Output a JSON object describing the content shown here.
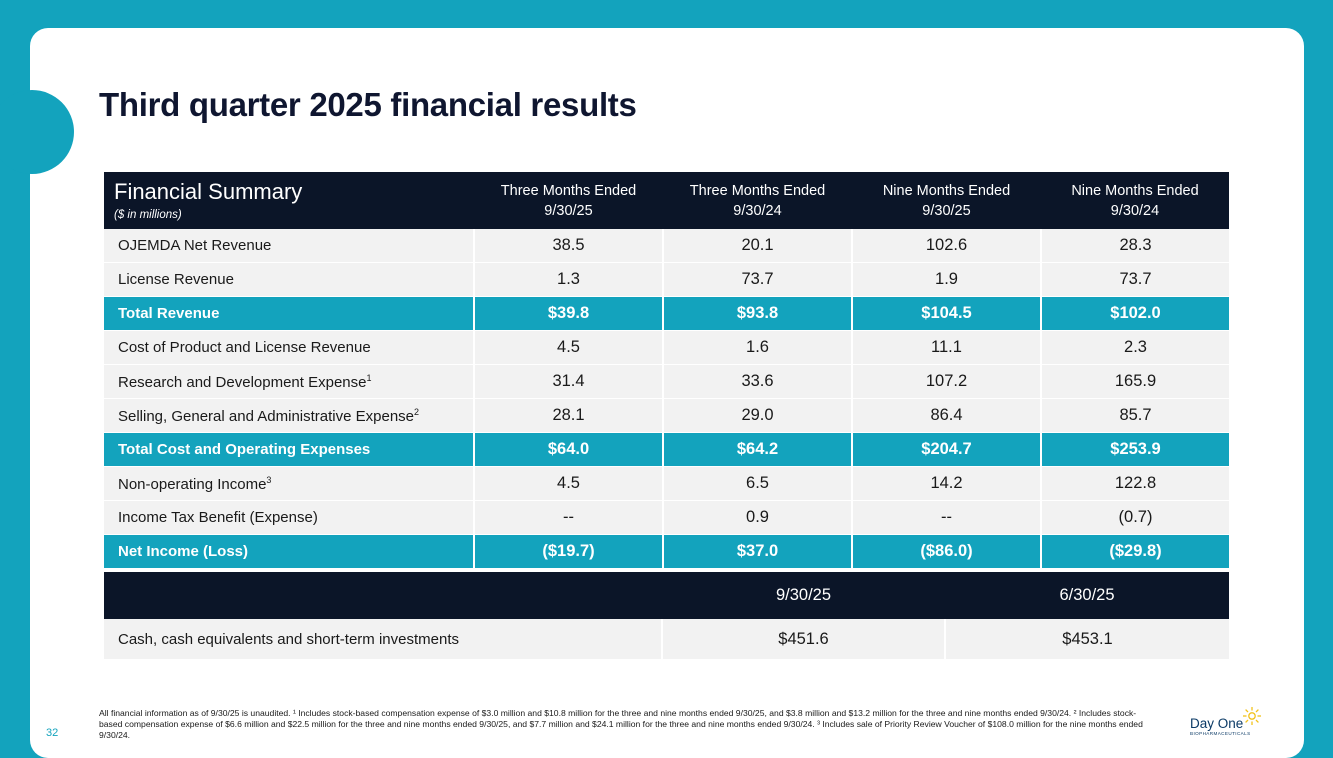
{
  "page": {
    "title": "Third quarter 2025 financial results",
    "page_number": "32"
  },
  "summary": {
    "heading": "Financial Summary",
    "subheading": "($ in millions)",
    "columns": [
      "Three Months Ended\n9/30/25",
      "Three Months Ended\n9/30/24",
      "Nine Months Ended\n9/30/25",
      "Nine Months Ended\n9/30/24"
    ],
    "rows": [
      {
        "label": "OJEMDA Net Revenue",
        "sup": "",
        "values": [
          "38.5",
          "20.1",
          "102.6",
          "28.3"
        ],
        "total": false
      },
      {
        "label": "License Revenue",
        "sup": "",
        "values": [
          "1.3",
          "73.7",
          "1.9",
          "73.7"
        ],
        "total": false
      },
      {
        "label": "Total Revenue",
        "sup": "",
        "values": [
          "$39.8",
          "$93.8",
          "$104.5",
          "$102.0"
        ],
        "total": true
      },
      {
        "label": "Cost of Product and License Revenue",
        "sup": "",
        "values": [
          "4.5",
          "1.6",
          "11.1",
          "2.3"
        ],
        "total": false
      },
      {
        "label": "Research and Development Expense",
        "sup": "1",
        "values": [
          "31.4",
          "33.6",
          "107.2",
          "165.9"
        ],
        "total": false
      },
      {
        "label": "Selling, General and Administrative Expense",
        "sup": "2",
        "values": [
          "28.1",
          "29.0",
          "86.4",
          "85.7"
        ],
        "total": false
      },
      {
        "label": "Total Cost and Operating Expenses",
        "sup": "",
        "values": [
          "$64.0",
          "$64.2",
          "$204.7",
          "$253.9"
        ],
        "total": true
      },
      {
        "label": "Non-operating Income",
        "sup": "3",
        "values": [
          "4.5",
          "6.5",
          "14.2",
          "122.8"
        ],
        "total": false
      },
      {
        "label": "Income Tax Benefit (Expense)",
        "sup": "",
        "values": [
          "--",
          "0.9",
          "--",
          "(0.7)"
        ],
        "total": false
      },
      {
        "label": "Net Income (Loss)",
        "sup": "",
        "values": [
          "($19.7)",
          "$37.0",
          "($86.0)",
          "($29.8)"
        ],
        "total": true
      }
    ]
  },
  "cash": {
    "columns": [
      "9/30/25",
      "6/30/25"
    ],
    "label": "Cash, cash equivalents and short-term investments",
    "values": [
      "$451.6",
      "$453.1"
    ]
  },
  "footnote": "All financial information as of 9/30/25 is unaudited. ¹ Includes stock-based compensation expense of $3.0 million and $10.8 million for the three and nine months ended 9/30/25, and $3.8 million and $13.2 million for the three and nine months ended 9/30/24. ² Includes stock-based compensation expense of $6.6 million and $22.5 million for the three and nine months ended 9/30/25, and $7.7 million and $24.1 million for the three and nine months ended 9/30/24. ³ Includes sale of Priority Review Voucher of $108.0 million for the nine months ended 9/30/24.",
  "logo": {
    "name": "Day One",
    "sub": "BIOPHARMACEUTICALS",
    "icon": "sun-icon",
    "color": "#0b3a66",
    "sun_color": "#f2c21b"
  },
  "colors": {
    "accent": "#13a3bd",
    "header": "#0b1528",
    "row_bg": "#f2f2f2"
  }
}
